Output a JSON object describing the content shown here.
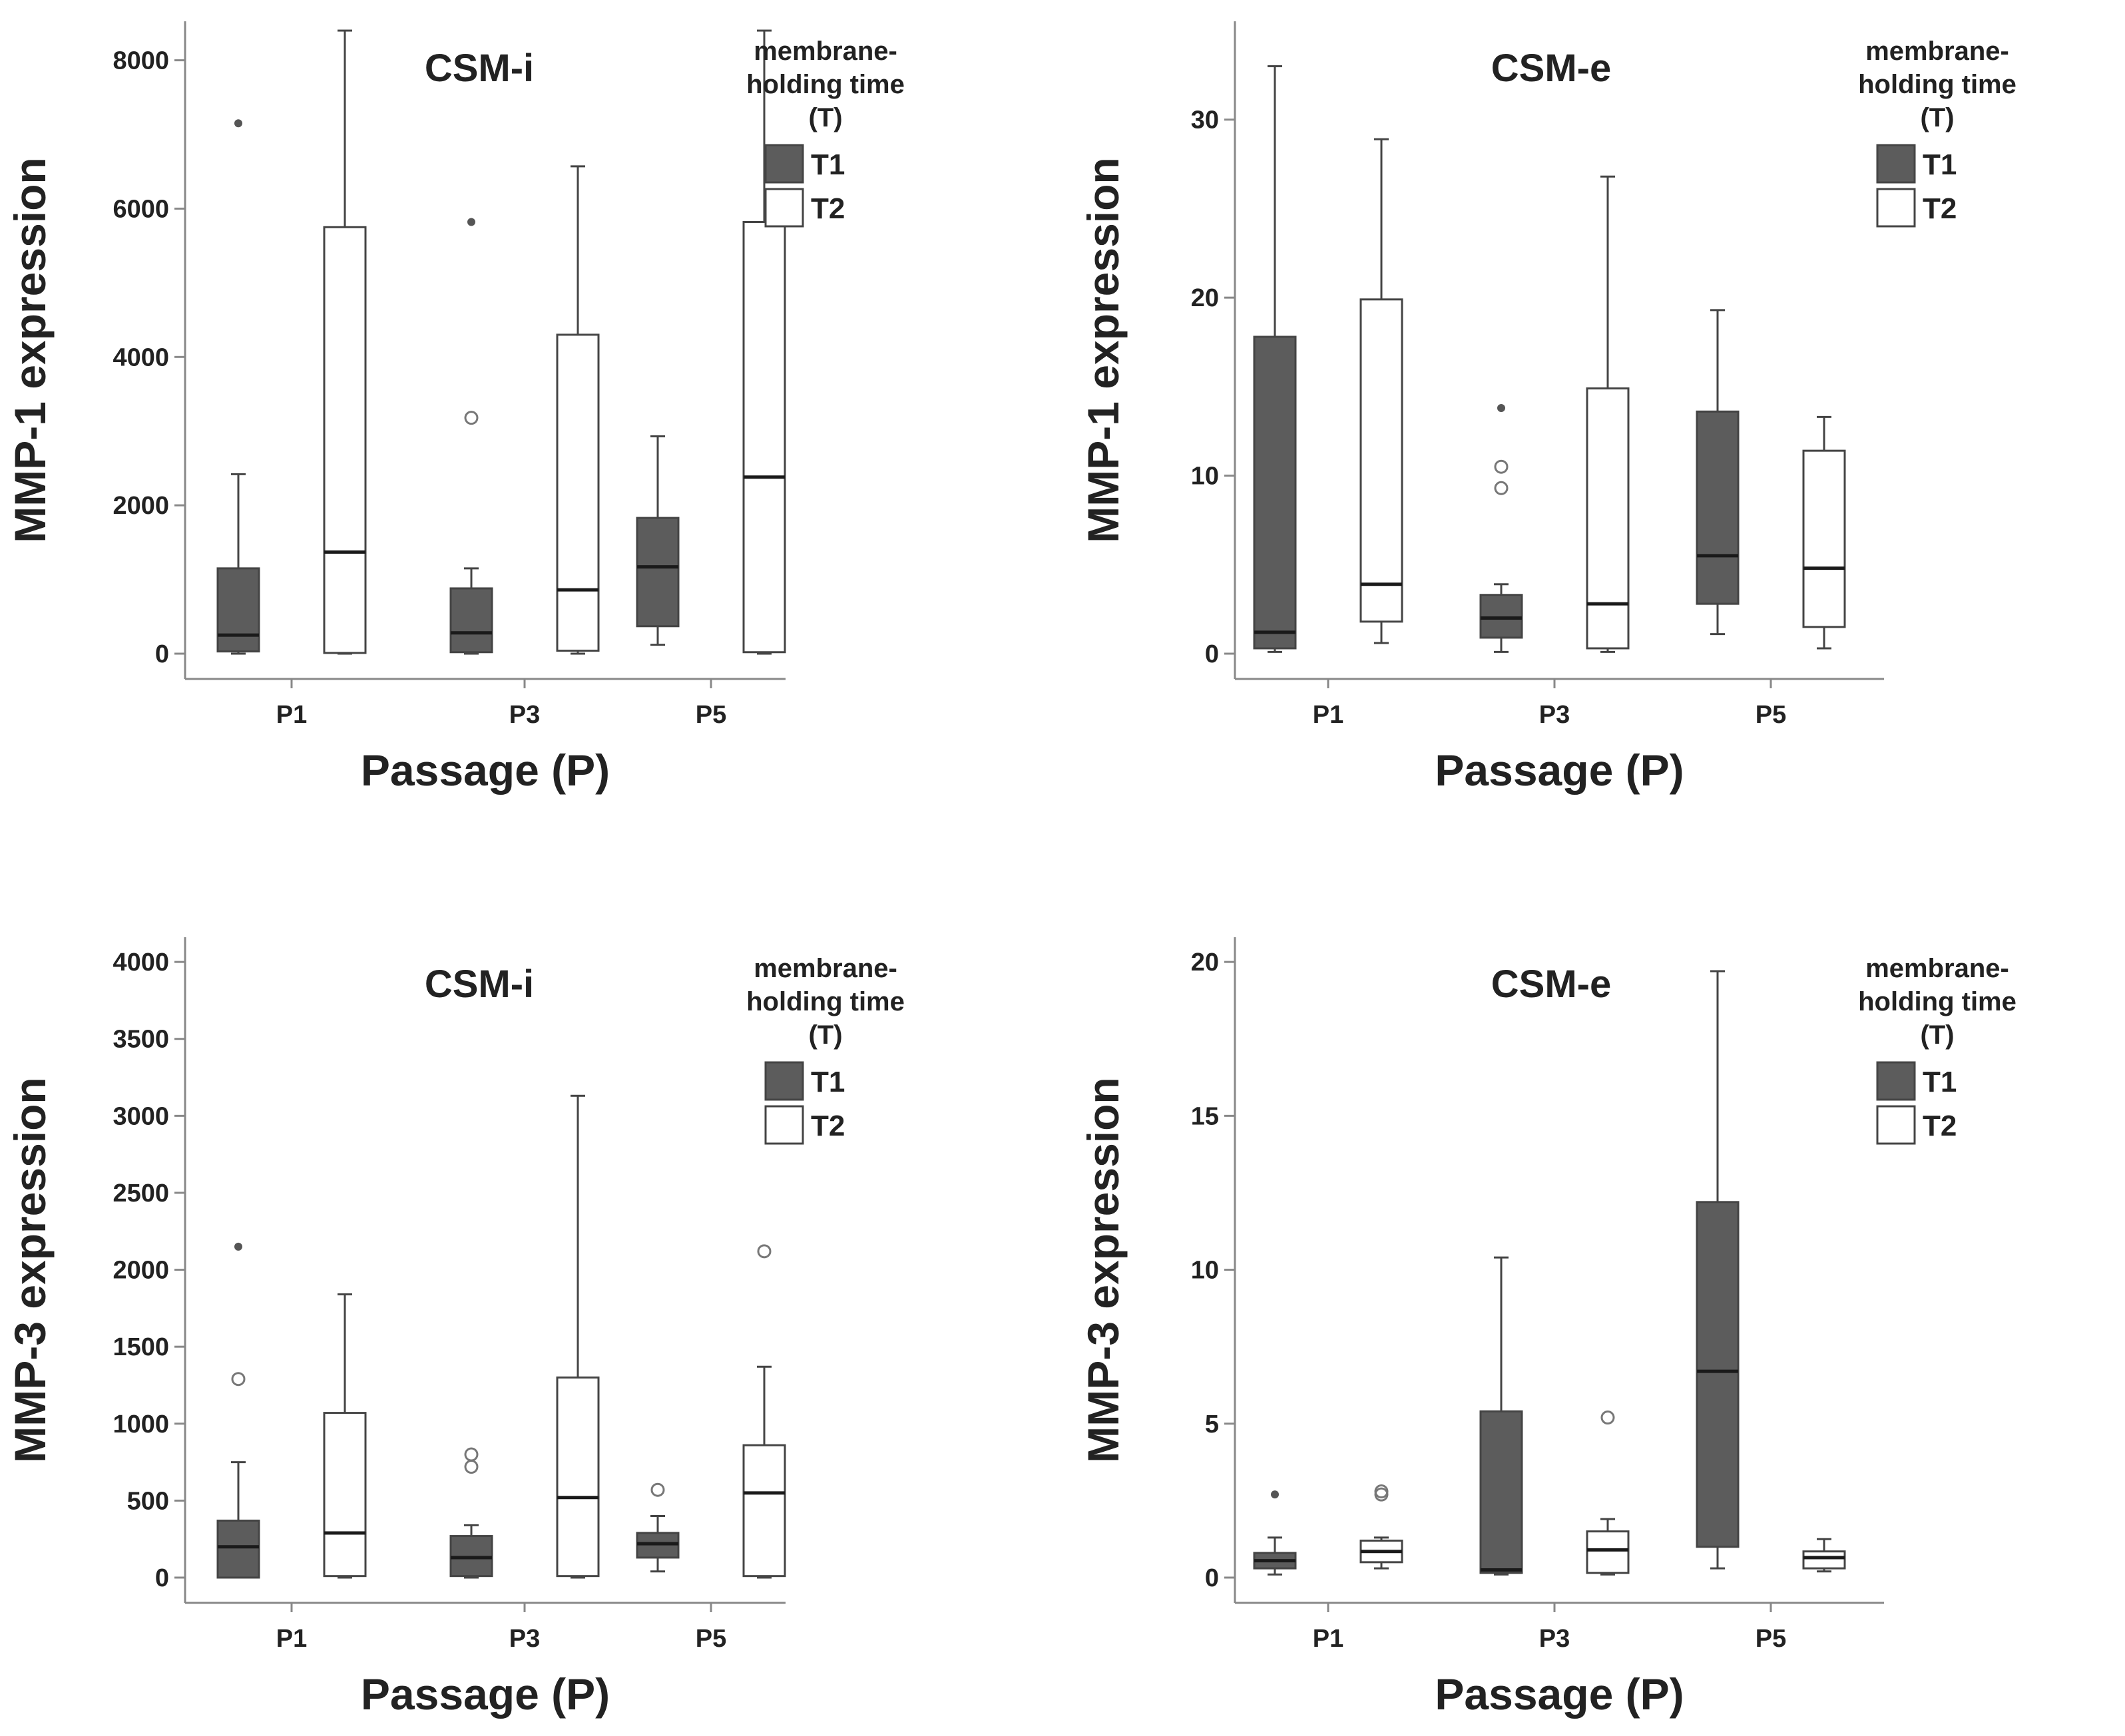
{
  "colors": {
    "t1_fill": "#5c5c5c",
    "t2_fill": "#ffffff",
    "stroke": "#444444",
    "axis": "#888888"
  },
  "chart_data": [
    {
      "type": "boxplot",
      "title": "CSM-i",
      "ylabel": "MMP-1 expression",
      "xlabel": "Passage (P)",
      "ylim": [
        0,
        8400
      ],
      "yticks": [
        0,
        2000,
        4000,
        6000,
        8000
      ],
      "categories": [
        "P1",
        "P3",
        "P5"
      ],
      "legend": {
        "title_lines": [
          "membrane-",
          "holding time",
          "(T)"
        ],
        "entries": [
          "T1",
          "T2"
        ]
      },
      "series": [
        {
          "name": "T1",
          "boxes": [
            {
              "min": 0,
              "q1": 30,
              "median": 250,
              "q3": 1150,
              "max": 2420,
              "outliers": [],
              "extremes": [
                7150
              ]
            },
            {
              "min": 0,
              "q1": 20,
              "median": 280,
              "q3": 880,
              "max": 1150,
              "outliers": [
                3180
              ],
              "extremes": [
                5820
              ]
            },
            {
              "min": 120,
              "q1": 370,
              "median": 1170,
              "q3": 1830,
              "max": 2930,
              "outliers": [],
              "extremes": []
            }
          ]
        },
        {
          "name": "T2",
          "boxes": [
            {
              "min": 0,
              "q1": 10,
              "median": 1370,
              "q3": 5750,
              "max": 8400,
              "outliers": [],
              "extremes": []
            },
            {
              "min": 0,
              "q1": 40,
              "median": 860,
              "q3": 4300,
              "max": 6570,
              "outliers": [],
              "extremes": []
            },
            {
              "min": 0,
              "q1": 20,
              "median": 2380,
              "q3": 5820,
              "max": 8400,
              "outliers": [],
              "extremes": []
            }
          ]
        }
      ]
    },
    {
      "type": "boxplot",
      "title": "CSM-e",
      "ylabel": "MMP-1 expression",
      "xlabel": "Passage (P)",
      "ylim": [
        0,
        35
      ],
      "yticks": [
        0,
        10,
        20,
        30
      ],
      "categories": [
        "P1",
        "P3",
        "P5"
      ],
      "legend": {
        "title_lines": [
          "membrane-",
          "holding time",
          "(T)"
        ],
        "entries": [
          "T1",
          "T2"
        ]
      },
      "series": [
        {
          "name": "T1",
          "boxes": [
            {
              "min": 0.1,
              "q1": 0.3,
              "median": 1.2,
              "q3": 17.8,
              "max": 33,
              "outliers": [],
              "extremes": []
            },
            {
              "min": 0.1,
              "q1": 0.9,
              "median": 2.0,
              "q3": 3.3,
              "max": 3.9,
              "outliers": [
                9.3,
                10.5
              ],
              "extremes": [
                13.8
              ]
            },
            {
              "min": 1.1,
              "q1": 2.8,
              "median": 5.5,
              "q3": 13.6,
              "max": 19.3,
              "outliers": [],
              "extremes": []
            }
          ]
        },
        {
          "name": "T2",
          "boxes": [
            {
              "min": 0.6,
              "q1": 1.8,
              "median": 3.9,
              "q3": 19.9,
              "max": 28.9,
              "outliers": [],
              "extremes": []
            },
            {
              "min": 0.1,
              "q1": 0.3,
              "median": 2.8,
              "q3": 14.9,
              "max": 26.8,
              "outliers": [],
              "extremes": []
            },
            {
              "min": 0.3,
              "q1": 1.5,
              "median": 4.8,
              "q3": 11.4,
              "max": 13.3,
              "outliers": [],
              "extremes": []
            }
          ]
        }
      ]
    },
    {
      "type": "boxplot",
      "title": "CSM-i",
      "ylabel": "MMP-3 expression",
      "xlabel": "Passage (P)",
      "ylim": [
        0,
        4100
      ],
      "yticks": [
        0,
        500,
        1000,
        1500,
        2000,
        2500,
        3000,
        3500,
        4000
      ],
      "categories": [
        "P1",
        "P3",
        "P5"
      ],
      "legend": {
        "title_lines": [
          "membrane-",
          "holding time",
          "(T)"
        ],
        "entries": [
          "T1",
          "T2"
        ]
      },
      "series": [
        {
          "name": "T1",
          "boxes": [
            {
              "min": 0,
              "q1": 0,
              "median": 200,
              "q3": 370,
              "max": 750,
              "outliers": [
                1290
              ],
              "extremes": [
                2150
              ]
            },
            {
              "min": 0,
              "q1": 10,
              "median": 130,
              "q3": 270,
              "max": 340,
              "outliers": [
                720,
                800
              ],
              "extremes": []
            },
            {
              "min": 40,
              "q1": 130,
              "median": 220,
              "q3": 290,
              "max": 400,
              "outliers": [
                570
              ],
              "extremes": []
            }
          ]
        },
        {
          "name": "T2",
          "boxes": [
            {
              "min": 0,
              "q1": 10,
              "median": 290,
              "q3": 1070,
              "max": 1840,
              "outliers": [],
              "extremes": []
            },
            {
              "min": 0,
              "q1": 10,
              "median": 520,
              "q3": 1300,
              "max": 3130,
              "outliers": [],
              "extremes": []
            },
            {
              "min": 0,
              "q1": 10,
              "median": 550,
              "q3": 860,
              "max": 1370,
              "outliers": [
                2120
              ],
              "extremes": []
            }
          ]
        }
      ]
    },
    {
      "type": "boxplot",
      "title": "CSM-e",
      "ylabel": "MMP-3 expression",
      "xlabel": "Passage (P)",
      "ylim": [
        0,
        20.5
      ],
      "yticks": [
        0,
        5,
        10,
        15,
        20
      ],
      "categories": [
        "P1",
        "P3",
        "P5"
      ],
      "legend": {
        "title_lines": [
          "membrane-",
          "holding time",
          "(T)"
        ],
        "entries": [
          "T1",
          "T2"
        ]
      },
      "series": [
        {
          "name": "T1",
          "boxes": [
            {
              "min": 0.1,
              "q1": 0.3,
              "median": 0.55,
              "q3": 0.8,
              "max": 1.3,
              "outliers": [],
              "extremes": [
                2.7
              ]
            },
            {
              "min": 0.1,
              "q1": 0.15,
              "median": 0.25,
              "q3": 5.4,
              "max": 10.4,
              "outliers": [],
              "extremes": []
            },
            {
              "min": 0.3,
              "q1": 1.0,
              "median": 6.7,
              "q3": 12.2,
              "max": 19.7,
              "outliers": [],
              "extremes": []
            }
          ]
        },
        {
          "name": "T2",
          "boxes": [
            {
              "min": 0.3,
              "q1": 0.5,
              "median": 0.85,
              "q3": 1.2,
              "max": 1.3,
              "outliers": [
                2.7,
                2.8
              ],
              "extremes": []
            },
            {
              "min": 0.1,
              "q1": 0.15,
              "median": 0.9,
              "q3": 1.5,
              "max": 1.9,
              "outliers": [
                5.2
              ],
              "extremes": []
            },
            {
              "min": 0.2,
              "q1": 0.3,
              "median": 0.65,
              "q3": 0.85,
              "max": 1.25,
              "outliers": [],
              "extremes": []
            }
          ]
        }
      ]
    }
  ]
}
